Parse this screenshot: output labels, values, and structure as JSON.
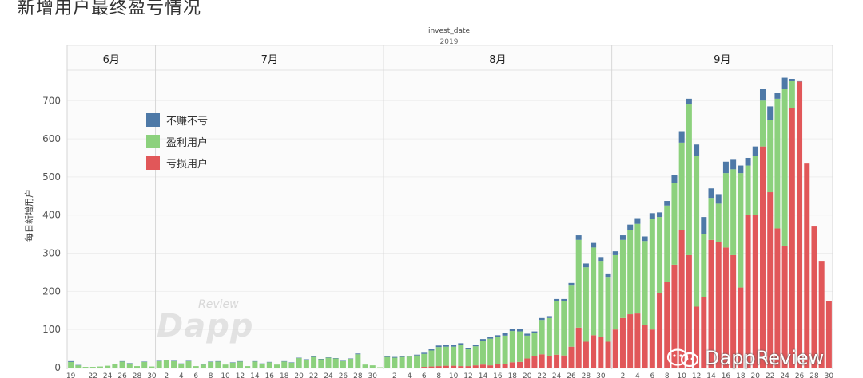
{
  "page": {
    "title": "新增用户最终盈亏情况"
  },
  "header": {
    "field": "invest_date",
    "year": "2019"
  },
  "months": [
    "6月",
    "7月",
    "8月",
    "9月"
  ],
  "watermark": {
    "review": "Review",
    "dapp": "Dapp"
  },
  "wechat": {
    "label": "DappReview"
  },
  "colors": {
    "break_even": "#4e79a7",
    "profit": "#8cd17d",
    "loss": "#e15759"
  },
  "chart_data": {
    "type": "bar",
    "stacked": true,
    "ylabel": "每日新增用户",
    "ylim": [
      0,
      780
    ],
    "yticks": [
      0,
      100,
      200,
      300,
      400,
      500,
      600,
      700
    ],
    "legend": {
      "position": "top-left",
      "items": [
        "不赚不亏",
        "盈利用户",
        "亏损用户"
      ]
    },
    "x_tick_labels_by_month": [
      [
        "19",
        "22",
        "24",
        "26",
        "28",
        "30"
      ],
      [
        "2",
        "4",
        "6",
        "8",
        "10",
        "12",
        "14",
        "16",
        "18",
        "20",
        "22",
        "24",
        "26",
        "28",
        "30"
      ],
      [
        "2",
        "4",
        "6",
        "8",
        "10",
        "12",
        "14",
        "16",
        "18",
        "20",
        "22",
        "24",
        "26",
        "28",
        "30"
      ],
      [
        "2",
        "4",
        "6",
        "8",
        "10",
        "12",
        "14",
        "16",
        "18",
        "20",
        "22",
        "24",
        "26",
        "28",
        "30"
      ]
    ],
    "months": [
      {
        "name": "6月",
        "days": [
          19,
          20,
          21,
          22,
          23,
          24,
          25,
          26,
          27,
          28,
          29,
          30
        ],
        "series": [
          {
            "name": "亏损用户",
            "values": [
              0,
              0,
              0,
              0,
              0,
              0,
              0,
              0,
              0,
              0,
              0,
              0
            ]
          },
          {
            "name": "盈利用户",
            "values": [
              15,
              6,
              2,
              2,
              3,
              5,
              9,
              16,
              11,
              4,
              15,
              3
            ]
          },
          {
            "name": "不赚不亏",
            "values": [
              2,
              1,
              0,
              0,
              0,
              0,
              1,
              1,
              1,
              0,
              1,
              0
            ]
          }
        ]
      },
      {
        "name": "7月",
        "days": [
          1,
          2,
          3,
          4,
          5,
          6,
          7,
          8,
          9,
          10,
          11,
          12,
          13,
          14,
          15,
          16,
          17,
          18,
          19,
          20,
          21,
          22,
          23,
          24,
          25,
          26,
          27,
          28,
          29,
          30,
          31
        ],
        "series": [
          {
            "name": "亏损用户",
            "values": [
              0,
              0,
              0,
              0,
              0,
              0,
              0,
              0,
              0,
              0,
              0,
              0,
              0,
              0,
              0,
              0,
              0,
              0,
              0,
              0,
              0,
              0,
              0,
              0,
              0,
              0,
              0,
              0,
              0,
              0,
              0
            ]
          },
          {
            "name": "盈利用户",
            "values": [
              17,
              19,
              17,
              10,
              17,
              4,
              8,
              15,
              16,
              8,
              13,
              16,
              4,
              16,
              10,
              14,
              8,
              16,
              13,
              25,
              21,
              28,
              22,
              26,
              24,
              17,
              23,
              35,
              8,
              6,
              1
            ]
          },
          {
            "name": "不赚不亏",
            "values": [
              1,
              1,
              1,
              1,
              1,
              0,
              1,
              1,
              1,
              0,
              1,
              1,
              0,
              1,
              1,
              1,
              0,
              1,
              1,
              1,
              1,
              2,
              1,
              1,
              1,
              1,
              1,
              2,
              0,
              0,
              0
            ]
          }
        ]
      },
      {
        "name": "8月",
        "days": [
          1,
          2,
          3,
          4,
          5,
          6,
          7,
          8,
          9,
          10,
          11,
          12,
          13,
          14,
          15,
          16,
          17,
          18,
          19,
          20,
          21,
          22,
          23,
          24,
          25,
          26,
          27,
          28,
          29,
          30,
          31
        ],
        "series": [
          {
            "name": "亏损用户",
            "values": [
              0,
              0,
              0,
              0,
              0,
              2,
              3,
              4,
              5,
              5,
              4,
              4,
              6,
              8,
              6,
              10,
              10,
              14,
              15,
              24,
              30,
              35,
              30,
              34,
              32,
              55,
              105,
              68,
              85,
              80,
              68
            ]
          },
          {
            "name": "盈利用户",
            "values": [
              28,
              26,
              28,
              29,
              32,
              34,
              42,
              50,
              50,
              50,
              56,
              44,
              50,
              62,
              70,
              70,
              74,
              82,
              80,
              60,
              60,
              90,
              100,
              140,
              142,
              160,
              230,
              195,
              230,
              200,
              170
            ]
          },
          {
            "name": "不赚不亏",
            "values": [
              2,
              2,
              2,
              2,
              2,
              3,
              3,
              4,
              4,
              4,
              4,
              3,
              4,
              5,
              5,
              5,
              6,
              6,
              6,
              5,
              5,
              5,
              5,
              6,
              6,
              7,
              12,
              10,
              12,
              10,
              9
            ]
          }
        ]
      },
      {
        "name": "9月",
        "days": [
          1,
          2,
          3,
          4,
          5,
          6,
          7,
          8,
          9,
          10,
          11,
          12,
          13,
          14,
          15,
          16,
          17,
          18,
          19,
          20,
          21,
          22,
          23,
          24,
          25,
          26,
          27,
          28,
          29,
          30
        ],
        "series": [
          {
            "name": "亏损用户",
            "values": [
              100,
              130,
              140,
              142,
              112,
              100,
              195,
              225,
              270,
              360,
              295,
              160,
              185,
              335,
              330,
              315,
              295,
              210,
              400,
              400,
              580,
              460,
              365,
              320,
              680,
              750,
              535,
              370,
              280,
              175
            ]
          },
          {
            "name": "盈利用户",
            "values": [
              195,
              205,
              220,
              235,
              220,
              290,
              200,
              200,
              215,
              230,
              395,
              395,
              165,
              110,
              100,
              195,
              225,
              300,
              130,
              155,
              120,
              190,
              340,
              410,
              72,
              0,
              0,
              0,
              0,
              0
            ]
          },
          {
            "name": "不赚不亏",
            "values": [
              10,
              12,
              15,
              15,
              12,
              15,
              12,
              12,
              20,
              30,
              15,
              30,
              45,
              25,
              25,
              30,
              25,
              20,
              20,
              25,
              30,
              35,
              15,
              30,
              5,
              3,
              0,
              0,
              0,
              0
            ]
          }
        ]
      }
    ]
  }
}
